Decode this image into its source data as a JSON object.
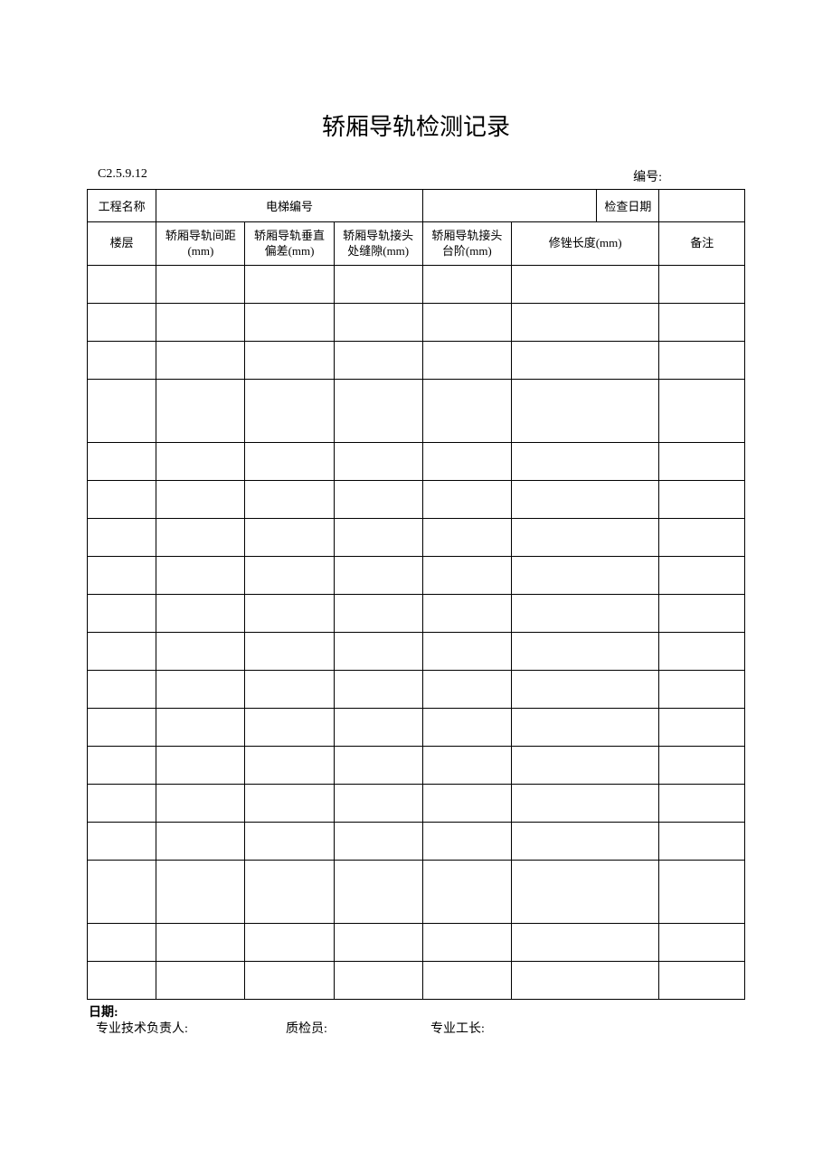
{
  "title": "轿厢导轨检测记录",
  "meta": {
    "code": "C2.5.9.12",
    "serial_label": "编号:"
  },
  "header_row1": {
    "project_name_label": "工程名称",
    "elevator_no_label": "电梯编号",
    "inspect_date_label": "检查日期"
  },
  "columns": [
    "楼层",
    "轿厢导轨间距(mm)",
    "轿厢导轨垂直偏差(mm)",
    "轿厢导轨接头处缝隙(mm)",
    "轿厢导轨接头台阶(mm)",
    "修锉长度(mm)",
    "备注"
  ],
  "col_widths_pct": [
    10.5,
    13.5,
    13.5,
    13.5,
    13.5,
    13.0,
    9.5,
    13.0
  ],
  "rows": [
    {
      "h": "n"
    },
    {
      "h": "n"
    },
    {
      "h": "n"
    },
    {
      "h": "t"
    },
    {
      "h": "n"
    },
    {
      "h": "n"
    },
    {
      "h": "n"
    },
    {
      "h": "n"
    },
    {
      "h": "n"
    },
    {
      "h": "n"
    },
    {
      "h": "n"
    },
    {
      "h": "n"
    },
    {
      "h": "n"
    },
    {
      "h": "n"
    },
    {
      "h": "n"
    },
    {
      "h": "t"
    },
    {
      "h": "n"
    },
    {
      "h": "n"
    }
  ],
  "footer": {
    "date_label": "日期:",
    "sign1": "专业技术负责人:",
    "sign2": "质检员:",
    "sign3": "专业工长:"
  },
  "colors": {
    "border": "#000000",
    "bg": "#ffffff",
    "text": "#000000"
  }
}
